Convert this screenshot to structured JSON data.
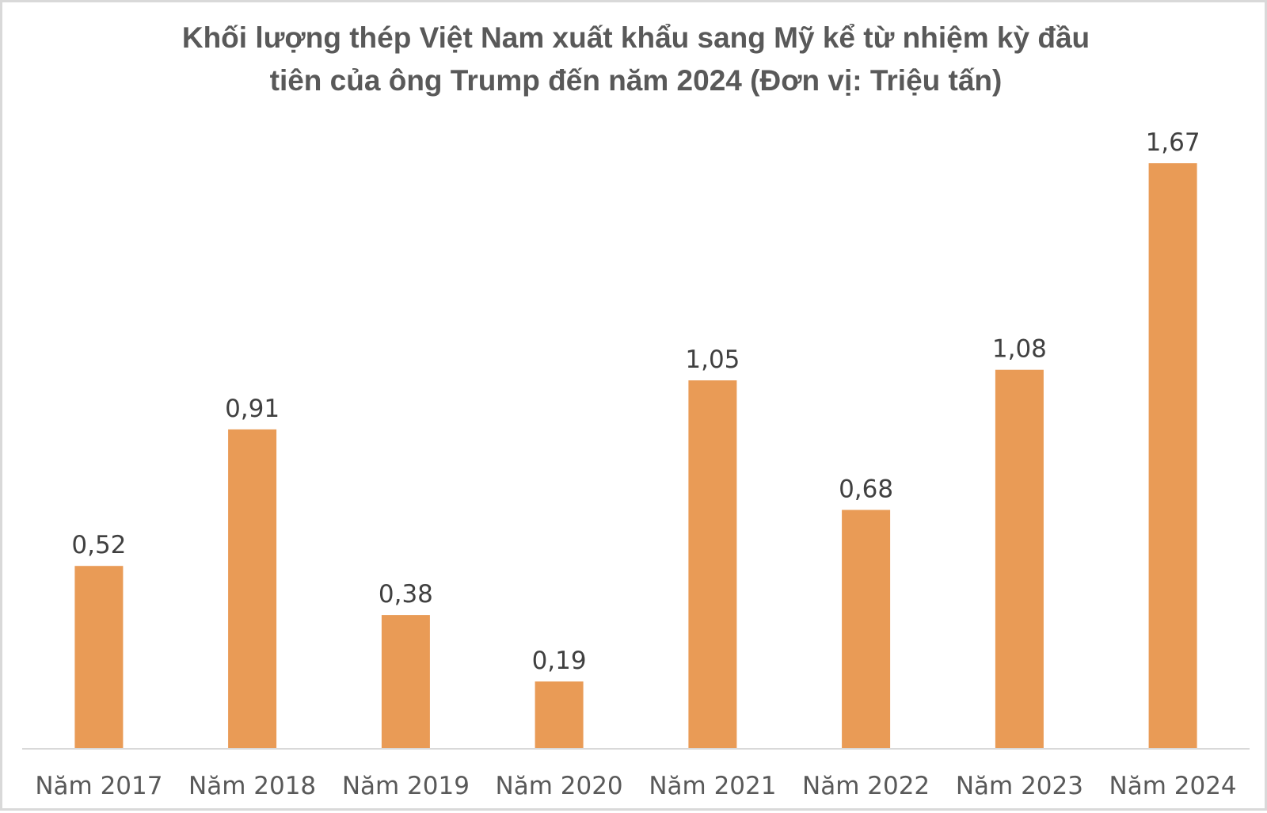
{
  "chart_data": {
    "type": "bar",
    "title": "Khối lượng thép Việt Nam xuất khẩu sang Mỹ kể từ nhiệm kỳ đầu tiên của ông Trump đến năm 2024 (Đơn vị: Triệu tấn)",
    "title_lines": [
      "Khối lượng thép Việt Nam xuất khẩu sang Mỹ kể từ nhiệm kỳ đầu",
      "tiên của ông Trump đến năm 2024 (Đơn vị: Triệu tấn)"
    ],
    "categories": [
      "Năm 2017",
      "Năm 2018",
      "Năm 2019",
      "Năm 2020",
      "Năm 2021",
      "Năm 2022",
      "Năm 2023",
      "Năm 2024"
    ],
    "values": [
      0.52,
      0.91,
      0.38,
      0.19,
      1.05,
      0.68,
      1.08,
      1.67
    ],
    "value_labels": [
      "0,52",
      "0,91",
      "0,38",
      "0,19",
      "1,05",
      "0,68",
      "1,08",
      "1,67"
    ],
    "xlabel": "",
    "ylabel": "",
    "ylim": [
      0,
      1.67
    ],
    "grid": false,
    "legend": "none",
    "bar_color": "#e99b56",
    "axis_color": "#d9d9d9"
  }
}
